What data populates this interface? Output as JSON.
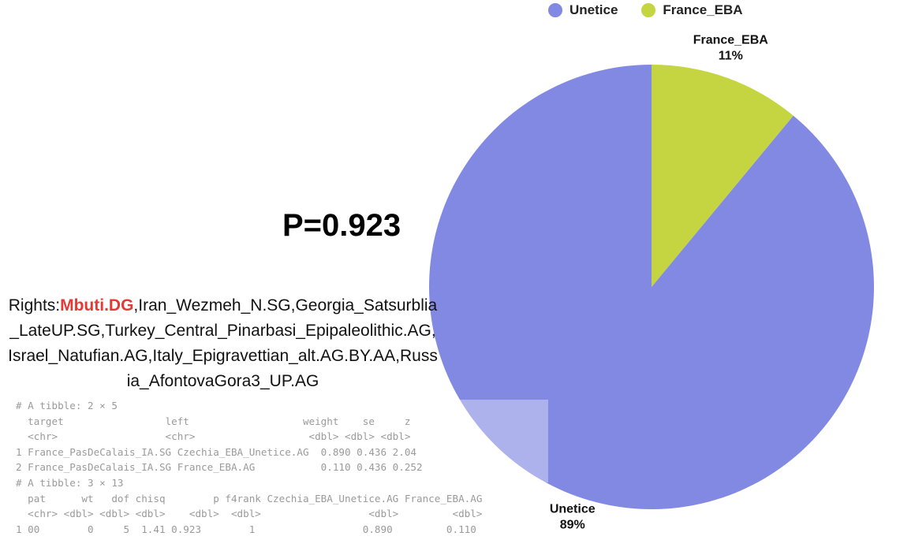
{
  "chart_data": {
    "type": "pie",
    "slices": [
      {
        "label": "Unetice",
        "value": 89,
        "pct_label": "89%",
        "color": "#8289e3"
      },
      {
        "label": "France_EBA",
        "value": 11,
        "pct_label": "11%",
        "color": "#c5d541"
      }
    ],
    "legend": [
      "Unetice",
      "France_EBA"
    ],
    "legend_placement": "top"
  },
  "pvalue": "P=0.923",
  "rights": {
    "prefix": "Rights:",
    "highlight": "Mbuti.DG",
    "rest": ",Iran_Wezmeh_N.SG,Georgia_Satsurblia_LateUP.SG,Turkey_Central_Pinarbasi_Epipaleolithic.AG,Israel_Natufian.AG,Italy_Epigravettian_alt.AG.BY.AA,Russia_AfontovaGora3_UP.AG",
    "highlight_color": "#e53935"
  },
  "console": [
    "# A tibble: 2 × 5",
    "  target                 left                   weight    se     z",
    "  <chr>                  <chr>                   <dbl> <dbl> <dbl>",
    "1 France_PasDeCalais_IA.SG Czechia_EBA_Unetice.AG  0.890 0.436 2.04",
    "2 France_PasDeCalais_IA.SG France_EBA.AG           0.110 0.436 0.252",
    "# A tibble: 3 × 13",
    "  pat      wt   dof chisq        p f4rank Czechia_EBA_Unetice.AG France_EBA.AG",
    "  <chr> <dbl> <dbl> <dbl>    <dbl>  <dbl>                  <dbl>         <dbl>",
    "1 00        0     5  1.41 0.923        1                  0.890         0.110"
  ]
}
